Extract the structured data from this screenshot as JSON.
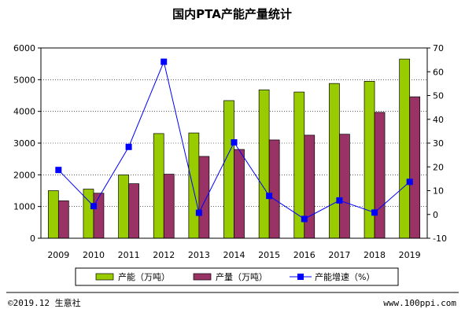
{
  "chart_data": {
    "type": "bar",
    "title": "国内PTA产能产量统计",
    "categories": [
      "2009",
      "2010",
      "2011",
      "2012",
      "2013",
      "2014",
      "2015",
      "2016",
      "2017",
      "2018",
      "2019"
    ],
    "series": [
      {
        "name": "产能（万吨）",
        "type": "bar",
        "axis": "left",
        "color": "#99cc00",
        "values": [
          1500,
          1550,
          2000,
          3300,
          3320,
          4340,
          4680,
          4610,
          4880,
          4950,
          5650
        ]
      },
      {
        "name": "产量（万吨）",
        "type": "bar",
        "axis": "left",
        "color": "#993366",
        "values": [
          1180,
          1420,
          1720,
          2020,
          2580,
          2800,
          3100,
          3250,
          3280,
          3970,
          4460
        ]
      },
      {
        "name": "产能增速（%）",
        "type": "line",
        "axis": "right",
        "color": "#0000ff",
        "values": [
          18.7,
          3.5,
          28.4,
          64.2,
          0.7,
          30.3,
          7.8,
          -1.9,
          5.9,
          0.8,
          13.7
        ]
      }
    ],
    "y_left": {
      "min": 0,
      "max": 6000,
      "ticks": [
        "0",
        "1000",
        "2000",
        "3000",
        "4000",
        "5000",
        "6000"
      ]
    },
    "y_right": {
      "min": -10,
      "max": 70,
      "ticks": [
        "-10",
        "0",
        "10",
        "20",
        "30",
        "40",
        "50",
        "60",
        "70"
      ]
    },
    "grid": true,
    "legend_position": "bottom"
  },
  "footer": {
    "left": "©2019.12 生意社",
    "right": "www.100ppi.com"
  }
}
